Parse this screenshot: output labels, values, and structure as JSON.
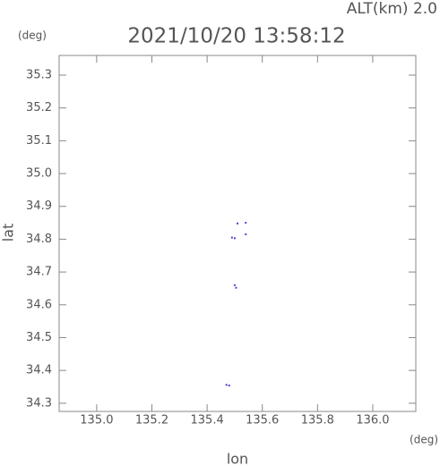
{
  "chart_data": {
    "type": "scatter",
    "title": "2021/10/20 13:58:12",
    "subtitle": "ALT(km) 2.0",
    "y_unit": "(deg)",
    "x_unit": "(deg)",
    "xlabel": "lon",
    "ylabel": "lat",
    "x": [
      135.51,
      135.54,
      135.54,
      135.49,
      135.5,
      135.5,
      135.505,
      135.47,
      135.48
    ],
    "y": [
      34.848,
      34.85,
      34.815,
      34.805,
      34.803,
      34.66,
      34.652,
      34.356,
      34.354
    ],
    "color": "#5a3fd0",
    "xlim": [
      134.864,
      136.156
    ],
    "ylim": [
      34.275,
      35.36
    ],
    "xticks": [
      {
        "value": 135,
        "label": "135.0"
      },
      135.2,
      135.4,
      135.6,
      135.8,
      {
        "value": 136,
        "label": "136.0"
      }
    ],
    "yticks": [
      34.3,
      34.4,
      34.5,
      34.6,
      34.7,
      34.8,
      34.9,
      {
        "value": 35,
        "label": "35.0"
      },
      35.1,
      35.2,
      35.3
    ],
    "grid": false
  }
}
